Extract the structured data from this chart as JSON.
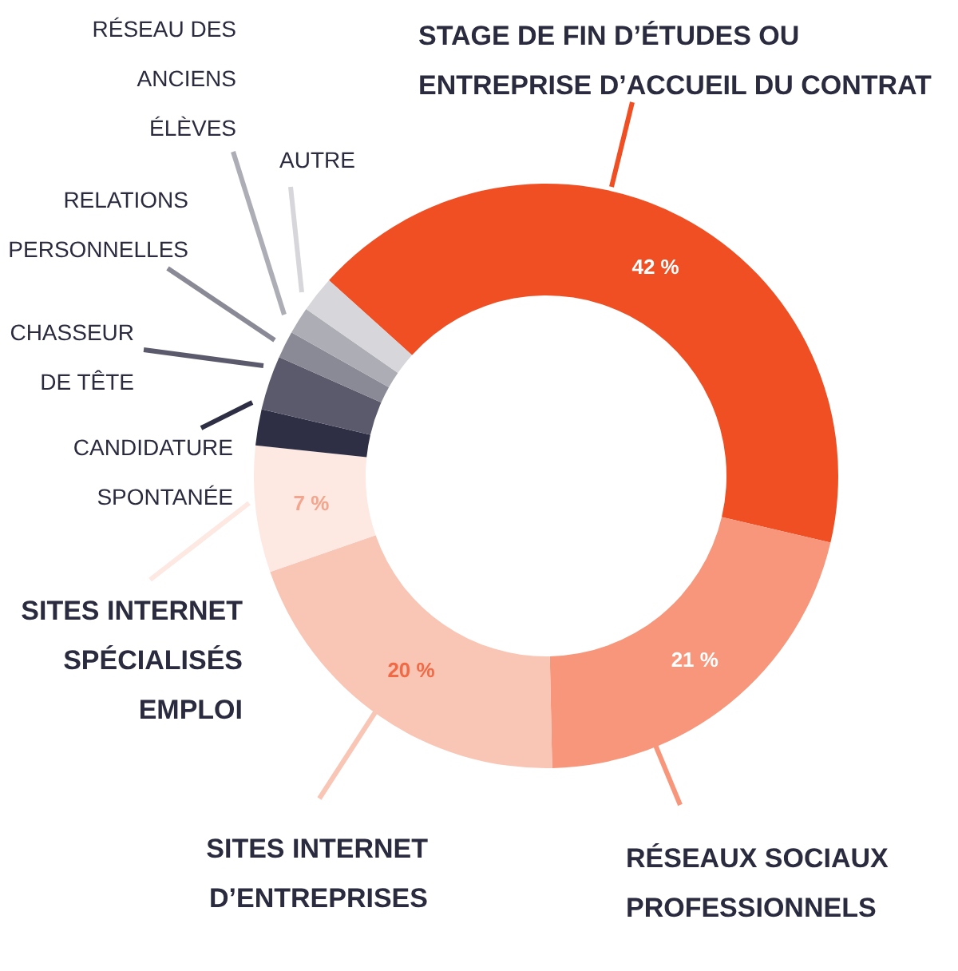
{
  "chart_data": {
    "type": "donut",
    "categories": [
      "STAGE DE FIN D’ÉTUDES OU\nENTREPRISE D’ACCUEIL DU CONTRAT",
      "RÉSEAUX SOCIAUX\nPROFESSIONNELS",
      "SITES INTERNET\nD’ENTREPRISES",
      "SITES INTERNET\nSPÉCIALISÉS\nEMPLOI",
      "CANDIDATURE\nSPONTANÉE",
      "CHASSEUR\nDE TÊTE",
      "RELATIONS\nPERSONNELLES",
      "RÉSEAU DES\nANCIENS\nÉLÈVES",
      "AUTRE"
    ],
    "values": [
      42,
      21,
      20,
      7,
      2,
      3,
      1.5,
      1.5,
      2
    ],
    "colors": [
      "#f04e23",
      "#f7967a",
      "#f9c5b5",
      "#fde8e2",
      "#2e2f45",
      "#5a5a6c",
      "#8a8a96",
      "#adadb5",
      "#d6d6db"
    ],
    "value_labels": [
      "42 %",
      "21 %",
      "20 %",
      "7 %",
      null,
      null,
      null,
      null,
      null
    ],
    "legend": false
  }
}
